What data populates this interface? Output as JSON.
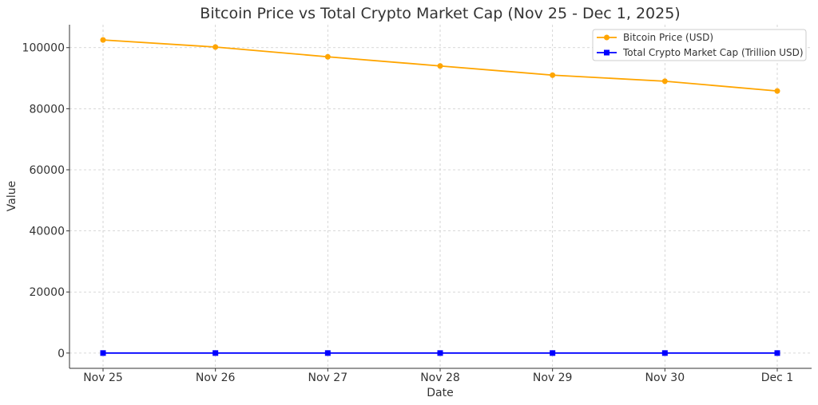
{
  "chart_data": {
    "type": "line",
    "title": "Bitcoin Price vs Total Crypto Market Cap (Nov 25 - Dec 1, 2025)",
    "xlabel": "Date",
    "ylabel": "Value",
    "categories": [
      "Nov 25",
      "Nov 26",
      "Nov 27",
      "Nov 28",
      "Nov 29",
      "Nov 30",
      "Dec 1"
    ],
    "ylim": [
      -5000,
      107500
    ],
    "yticks": [
      0,
      20000,
      40000,
      60000,
      80000,
      100000
    ],
    "grid": true,
    "legend_position": "top-right",
    "series": [
      {
        "name": "Bitcoin Price (USD)",
        "color": "#FFA500",
        "marker": "circle",
        "values": [
          102500,
          100200,
          97000,
          94000,
          91000,
          89000,
          85800
        ]
      },
      {
        "name": "Total Crypto Market Cap (Trillion USD)",
        "color": "#0000FF",
        "marker": "square",
        "values": [
          3.5,
          3.4,
          3.3,
          3.2,
          3.1,
          3.0,
          2.9
        ]
      }
    ]
  }
}
